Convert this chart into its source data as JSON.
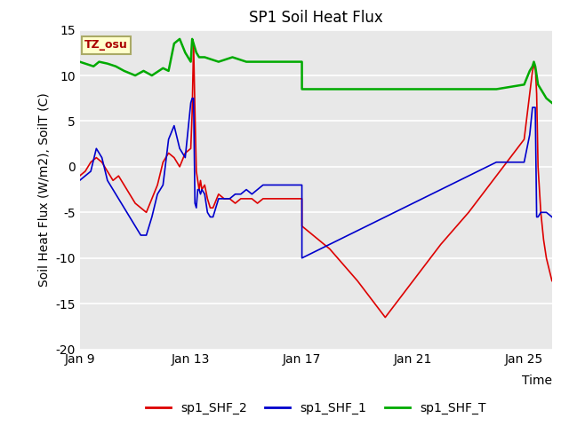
{
  "title": "SP1 Soil Heat Flux",
  "xlabel": "Time",
  "ylabel": "Soil Heat Flux (W/m2), SoilT (C)",
  "ylim": [
    -20,
    15
  ],
  "xlim": [
    0,
    17
  ],
  "fig_facecolor": "#ffffff",
  "plot_bg": "#e8e8e8",
  "tz_label": "TZ_osu",
  "tz_box_facecolor": "#ffffcc",
  "tz_box_edgecolor": "#aaaa66",
  "tz_text_color": "#aa0000",
  "legend_labels": [
    "sp1_SHF_2",
    "sp1_SHF_1",
    "sp1_SHF_T"
  ],
  "legend_colors": [
    "#dd0000",
    "#0000cc",
    "#00aa00"
  ],
  "xtick_labels": [
    "Jan 9",
    "Jan 13",
    "Jan 17",
    "Jan 21",
    "Jan 25"
  ],
  "xtick_positions": [
    0,
    4,
    8,
    12,
    16
  ],
  "ytick_positions": [
    -20,
    -15,
    -10,
    -5,
    0,
    5,
    10,
    15
  ],
  "sp1_SHF_2_x": [
    0,
    0.2,
    0.4,
    0.6,
    0.8,
    1.0,
    1.2,
    1.4,
    1.6,
    1.8,
    2.0,
    2.2,
    2.4,
    2.6,
    2.8,
    3.0,
    3.2,
    3.4,
    3.6,
    3.8,
    4.0,
    4.05,
    4.1,
    4.15,
    4.2,
    4.25,
    4.3,
    4.35,
    4.4,
    4.5,
    4.6,
    4.7,
    4.8,
    5.0,
    5.2,
    5.4,
    5.6,
    5.8,
    6.0,
    6.2,
    6.4,
    6.6,
    6.8,
    7.0,
    7.2,
    7.4,
    7.6,
    7.8,
    8.0,
    8.001,
    9.0,
    10.0,
    11.0,
    12.0,
    13.0,
    14.0,
    15.0,
    16.0,
    16.2,
    16.3,
    16.35,
    16.4,
    16.45,
    16.5,
    16.6,
    16.7,
    16.8,
    17.0
  ],
  "sp1_SHF_2_y": [
    -1.0,
    -0.5,
    0.5,
    1.0,
    0.5,
    -0.5,
    -1.5,
    -1.0,
    -2.0,
    -3.0,
    -4.0,
    -4.5,
    -5.0,
    -3.5,
    -2.0,
    0.5,
    1.5,
    1.0,
    0.0,
    1.5,
    2.0,
    6.0,
    13.5,
    6.0,
    -0.5,
    -1.5,
    -2.5,
    -1.5,
    -2.5,
    -2.0,
    -3.5,
    -4.5,
    -4.5,
    -3.0,
    -3.5,
    -3.5,
    -4.0,
    -3.5,
    -3.5,
    -3.5,
    -4.0,
    -3.5,
    -3.5,
    -3.5,
    -3.5,
    -3.5,
    -3.5,
    -3.5,
    -3.5,
    -6.5,
    -9.0,
    -12.5,
    -16.5,
    -12.5,
    -8.5,
    -5.0,
    -1.0,
    3.0,
    8.0,
    10.5,
    11.0,
    11.0,
    8.0,
    0.0,
    -5.0,
    -8.0,
    -10.0,
    -12.5
  ],
  "sp1_SHF_1_x": [
    0,
    0.2,
    0.4,
    0.6,
    0.8,
    1.0,
    1.2,
    1.4,
    1.6,
    1.8,
    2.0,
    2.2,
    2.4,
    2.6,
    2.8,
    3.0,
    3.2,
    3.4,
    3.6,
    3.8,
    4.0,
    4.05,
    4.1,
    4.15,
    4.2,
    4.25,
    4.3,
    4.35,
    4.4,
    4.5,
    4.6,
    4.7,
    4.8,
    5.0,
    5.2,
    5.4,
    5.6,
    5.8,
    6.0,
    6.2,
    6.4,
    6.6,
    6.8,
    7.0,
    7.2,
    7.4,
    7.6,
    7.8,
    8.0,
    8.001,
    9.0,
    10.0,
    11.0,
    12.0,
    13.0,
    14.0,
    15.0,
    16.0,
    16.2,
    16.3,
    16.35,
    16.4,
    16.45,
    16.5,
    16.6,
    16.7,
    16.8,
    17.0
  ],
  "sp1_SHF_1_y": [
    -1.5,
    -1.0,
    -0.5,
    2.0,
    1.0,
    -1.5,
    -2.5,
    -3.5,
    -4.5,
    -5.5,
    -6.5,
    -7.5,
    -7.5,
    -5.5,
    -3.0,
    -2.0,
    3.0,
    4.5,
    2.0,
    1.0,
    7.0,
    7.5,
    7.5,
    -4.0,
    -4.5,
    -2.5,
    -2.5,
    -3.0,
    -2.5,
    -3.0,
    -5.0,
    -5.5,
    -5.5,
    -3.5,
    -3.5,
    -3.5,
    -3.0,
    -3.0,
    -2.5,
    -3.0,
    -2.5,
    -2.0,
    -2.0,
    -2.0,
    -2.0,
    -2.0,
    -2.0,
    -2.0,
    -2.0,
    -10.0,
    -8.5,
    -7.0,
    -5.5,
    -4.0,
    -2.5,
    -1.0,
    0.5,
    0.5,
    3.5,
    6.5,
    6.5,
    6.5,
    -5.5,
    -5.5,
    -5.0,
    -5.0,
    -5.0,
    -5.5
  ],
  "sp1_SHF_T_x": [
    0,
    0.3,
    0.5,
    0.7,
    1.0,
    1.3,
    1.6,
    2.0,
    2.3,
    2.6,
    3.0,
    3.2,
    3.4,
    3.6,
    3.8,
    4.0,
    4.05,
    4.1,
    4.15,
    4.2,
    4.3,
    4.5,
    5.0,
    5.5,
    6.0,
    6.5,
    7.0,
    7.5,
    8.0,
    8.001,
    9.0,
    10.0,
    11.0,
    12.0,
    13.0,
    14.0,
    15.0,
    16.0,
    16.2,
    16.3,
    16.35,
    16.4,
    16.5,
    16.6,
    16.8,
    17.0
  ],
  "sp1_SHF_T_y": [
    11.5,
    11.2,
    11.0,
    11.5,
    11.3,
    11.0,
    10.5,
    10.0,
    10.5,
    10.0,
    10.8,
    10.5,
    13.5,
    14.0,
    12.5,
    11.5,
    14.0,
    13.5,
    13.0,
    12.5,
    12.0,
    12.0,
    11.5,
    12.0,
    11.5,
    11.5,
    11.5,
    11.5,
    11.5,
    8.5,
    8.5,
    8.5,
    8.5,
    8.5,
    8.5,
    8.5,
    8.5,
    9.0,
    10.5,
    11.0,
    11.5,
    11.0,
    9.0,
    8.5,
    7.5,
    7.0
  ]
}
